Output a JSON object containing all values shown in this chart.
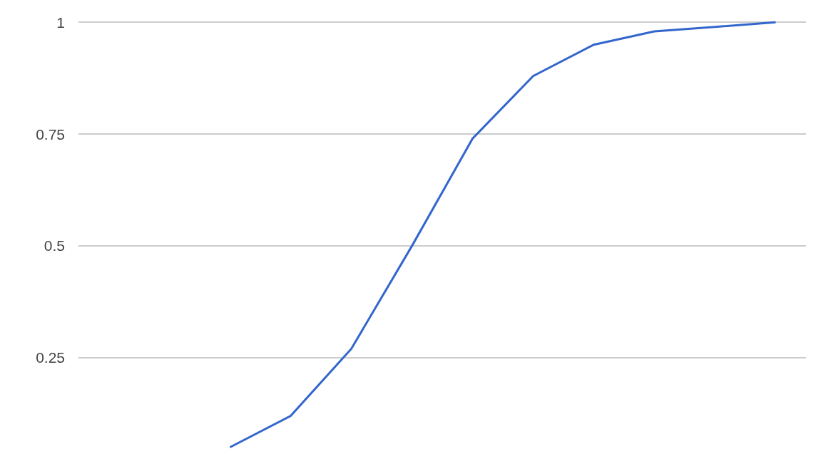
{
  "chart_data": {
    "type": "line",
    "categories": [
      null,
      null,
      null,
      null,
      null,
      null,
      null,
      null,
      null,
      null
    ],
    "series": [
      {
        "color": "#3366cc",
        "values": [
          0.05,
          0.12,
          0.27,
          0.5,
          0.74,
          0.88,
          0.95,
          0.98,
          0.99,
          1.0
        ]
      }
    ],
    "ylim": [
      0.046,
      1.05
    ],
    "yticks": [
      0.25,
      0.5,
      0.75,
      1
    ],
    "grid": "y",
    "tick_labels": "y",
    "marker": "none",
    "line_style": "solid"
  }
}
